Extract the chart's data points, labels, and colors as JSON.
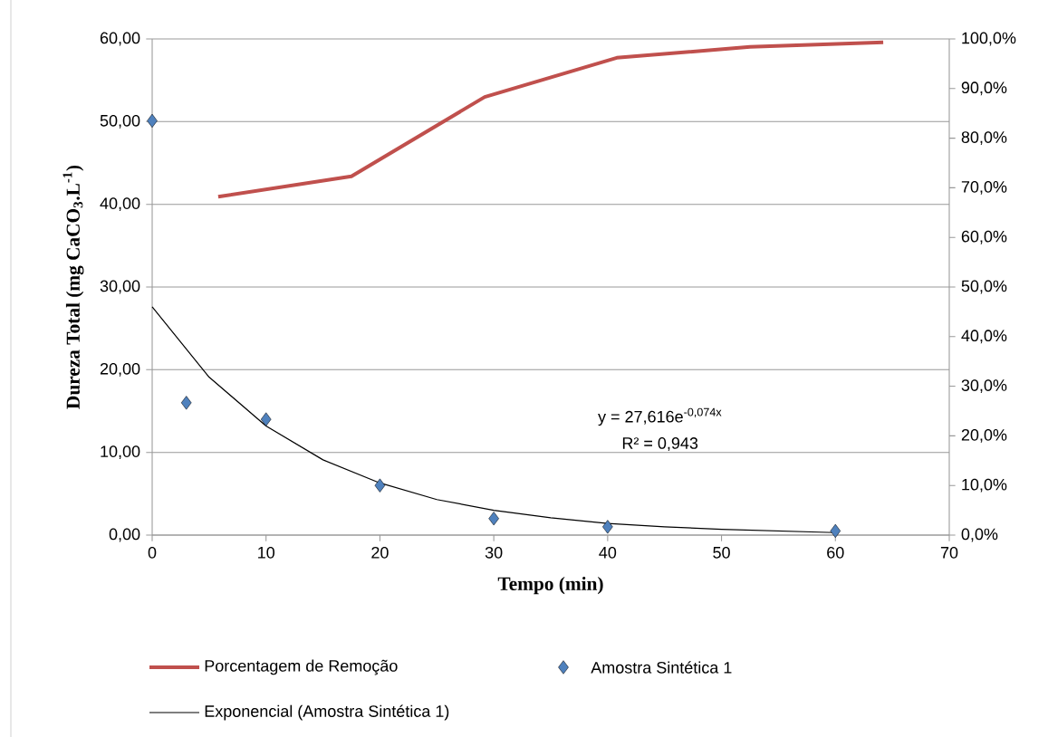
{
  "chart_data": {
    "type": "scatter",
    "xlabel": "Tempo (min)",
    "ylabel": "Dureza Total (mg CaCO$_{3}$.L$^{-1}$)",
    "xlim": [
      0,
      70
    ],
    "xticks": [
      0,
      10,
      20,
      30,
      40,
      50,
      60,
      70
    ],
    "ylim": [
      0,
      60
    ],
    "yticks": [
      {
        "value": 0,
        "label": "0,00"
      },
      {
        "value": 10,
        "label": "10,00"
      },
      {
        "value": 20,
        "label": "20,00"
      },
      {
        "value": 30,
        "label": "30,00"
      },
      {
        "value": 40,
        "label": "40,00"
      },
      {
        "value": 50,
        "label": "50,00"
      },
      {
        "value": 60,
        "label": "60,00"
      }
    ],
    "y2lim": [
      0,
      100
    ],
    "y2ticks": [
      {
        "value": 0,
        "label": "0,0%"
      },
      {
        "value": 10,
        "label": "10,0%"
      },
      {
        "value": 20,
        "label": "20,0%"
      },
      {
        "value": 30,
        "label": "30,0%"
      },
      {
        "value": 40,
        "label": "40,0%"
      },
      {
        "value": 50,
        "label": "50,0%"
      },
      {
        "value": 60,
        "label": "60,0%"
      },
      {
        "value": 70,
        "label": "70,0%"
      },
      {
        "value": 80,
        "label": "80,0%"
      },
      {
        "value": 90,
        "label": "90,0%"
      },
      {
        "value": 100,
        "label": "100,0%"
      }
    ],
    "grid": "y",
    "legend": "bottom",
    "annotations": [
      "y = 27,616e$^{-0,074x}$",
      "R² = 0,943"
    ],
    "series": [
      {
        "name": "Porcentagem de Remoção",
        "type": "line",
        "axis": "y2",
        "color": "#c0504d",
        "marker": "none",
        "x": [
          5.8,
          17.5,
          29.2,
          40.8,
          52.5,
          64.2
        ],
        "values": [
          68.2,
          72.3,
          88.3,
          96.2,
          98.4,
          99.3
        ]
      },
      {
        "name": "Amostra Sintética 1",
        "type": "scatter",
        "color": "#4f81bd",
        "marker": "diamond",
        "x": [
          0,
          3,
          10,
          20,
          30,
          40,
          60
        ],
        "values": [
          50.1,
          16.0,
          14.0,
          6.0,
          2.0,
          1.0,
          0.5
        ]
      },
      {
        "name": "Exponencial (Amostra Sintética 1)",
        "type": "line",
        "color": "#000000",
        "marker": "none",
        "x": [
          0,
          5,
          10,
          15,
          20,
          25,
          30,
          35,
          40,
          45,
          50,
          55,
          60
        ],
        "values": [
          27.6,
          19.1,
          13.2,
          9.1,
          6.3,
          4.3,
          3.0,
          2.1,
          1.4,
          1.0,
          0.7,
          0.5,
          0.3
        ]
      }
    ]
  }
}
